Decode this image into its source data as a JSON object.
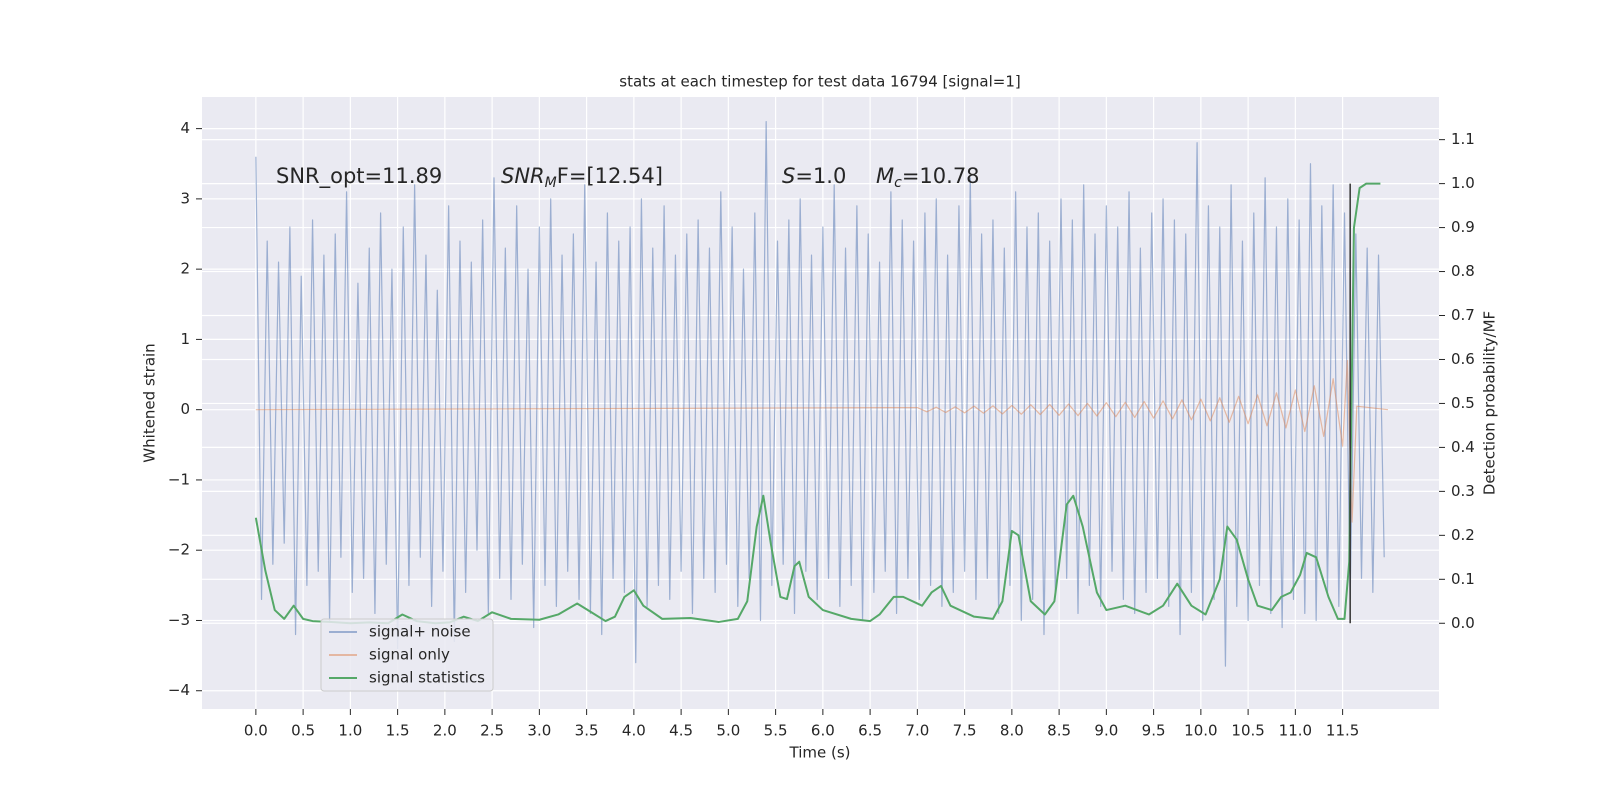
{
  "chart_data": {
    "type": "line",
    "title": "stats at each timestep for test data 16794 [signal=1]",
    "x_label": "Time (s)",
    "y_label": "Whitened strain",
    "y2_label": "Detection probability/MF",
    "xlim": [
      -0.57,
      12.52
    ],
    "ylim": [
      -4.26,
      4.45
    ],
    "y2lim": [
      -0.195,
      1.197
    ],
    "xticks": [
      {
        "value": 0,
        "label": "0.0"
      },
      0.5,
      {
        "value": 1,
        "label": "1.0"
      },
      1.5,
      {
        "value": 2,
        "label": "2.0"
      },
      2.5,
      {
        "value": 3,
        "label": "3.0"
      },
      3.5,
      {
        "value": 4,
        "label": "4.0"
      },
      4.5,
      {
        "value": 5,
        "label": "5.0"
      },
      5.5,
      {
        "value": 6,
        "label": "6.0"
      },
      6.5,
      {
        "value": 7,
        "label": "7.0"
      },
      7.5,
      {
        "value": 8,
        "label": "8.0"
      },
      8.5,
      {
        "value": 9,
        "label": "9.0"
      },
      9.5,
      {
        "value": 10,
        "label": "10.0"
      },
      10.5,
      {
        "value": 11,
        "label": "11.0"
      },
      11.5
    ],
    "yticks": [
      {
        "value": -4,
        "label": "−4"
      },
      {
        "value": -3,
        "label": "−3"
      },
      {
        "value": -2,
        "label": "−2"
      },
      {
        "value": -1,
        "label": "−1"
      },
      0,
      1,
      2,
      3,
      4
    ],
    "y2ticks": [
      {
        "value": 0,
        "label": "0.0"
      },
      0.1,
      0.2,
      0.3,
      0.4,
      0.5,
      0.6,
      0.7,
      0.8,
      0.9,
      {
        "value": 1,
        "label": "1.0"
      },
      1.1
    ],
    "grid": true,
    "legend": "lower left",
    "annotations": [
      {
        "text": "SNR_opt=11.89"
      },
      {
        "base": "SNR",
        "sub": "M",
        "tail": "F=[12.54]"
      },
      {
        "base": "S",
        "tail": "=1.0"
      },
      {
        "base": "M",
        "sub": "c",
        "tail": "=10.78"
      }
    ],
    "vline": {
      "x": 11.58,
      "y2": [
        0,
        1
      ],
      "color": "#333333"
    },
    "series": [
      {
        "name": "signal+ noise",
        "color": "#4c72b0",
        "opacity": 0.5,
        "x": [
          0,
          0.06,
          0.12,
          0.18,
          0.24,
          0.3,
          0.36,
          0.42,
          0.48,
          0.54,
          0.6,
          0.66,
          0.72,
          0.78,
          0.84,
          0.9,
          0.96,
          1.02,
          1.08,
          1.14,
          1.2,
          1.26,
          1.32,
          1.38,
          1.44,
          1.5,
          1.56,
          1.62,
          1.68,
          1.74,
          1.8,
          1.86,
          1.92,
          1.98,
          2.04,
          2.1,
          2.16,
          2.22,
          2.28,
          2.34,
          2.4,
          2.46,
          2.52,
          2.58,
          2.64,
          2.7,
          2.76,
          2.82,
          2.88,
          2.94,
          3,
          3.06,
          3.12,
          3.18,
          3.24,
          3.3,
          3.36,
          3.42,
          3.48,
          3.54,
          3.6,
          3.66,
          3.72,
          3.78,
          3.84,
          3.9,
          3.96,
          4.02,
          4.08,
          4.14,
          4.2,
          4.26,
          4.32,
          4.38,
          4.44,
          4.5,
          4.56,
          4.62,
          4.68,
          4.74,
          4.8,
          4.86,
          4.92,
          4.98,
          5.04,
          5.1,
          5.16,
          5.22,
          5.28,
          5.34,
          5.4,
          5.46,
          5.52,
          5.58,
          5.64,
          5.7,
          5.76,
          5.82,
          5.88,
          5.94,
          6,
          6.06,
          6.12,
          6.18,
          6.24,
          6.3,
          6.36,
          6.42,
          6.48,
          6.54,
          6.6,
          6.66,
          6.72,
          6.78,
          6.84,
          6.9,
          6.96,
          7.02,
          7.08,
          7.14,
          7.2,
          7.26,
          7.32,
          7.38,
          7.44,
          7.5,
          7.56,
          7.62,
          7.68,
          7.74,
          7.8,
          7.86,
          7.92,
          7.98,
          8.04,
          8.1,
          8.16,
          8.22,
          8.28,
          8.34,
          8.4,
          8.46,
          8.52,
          8.58,
          8.64,
          8.7,
          8.76,
          8.82,
          8.88,
          8.94,
          9,
          9.06,
          9.12,
          9.18,
          9.24,
          9.3,
          9.36,
          9.42,
          9.48,
          9.54,
          9.6,
          9.66,
          9.72,
          9.78,
          9.84,
          9.9,
          9.96,
          10.02,
          10.08,
          10.14,
          10.2,
          10.26,
          10.32,
          10.38,
          10.44,
          10.5,
          10.56,
          10.62,
          10.68,
          10.74,
          10.8,
          10.86,
          10.92,
          10.98,
          11.04,
          11.1,
          11.16,
          11.22,
          11.28,
          11.34,
          11.4,
          11.46,
          11.52,
          11.58,
          11.64,
          11.7,
          11.76,
          11.82,
          11.88,
          11.94
        ],
        "values": [
          3.6,
          -2.7,
          2.4,
          -2.2,
          2.1,
          -1.9,
          2.6,
          -3.2,
          1.9,
          -2.5,
          2.7,
          -2.3,
          2.2,
          -3.0,
          2.5,
          -2.1,
          3.1,
          -2.6,
          1.8,
          -2.4,
          2.3,
          -2.9,
          2.8,
          -2.2,
          2.0,
          -3.4,
          2.6,
          -2.5,
          3.2,
          -2.1,
          2.2,
          -2.8,
          1.7,
          -2.3,
          2.9,
          -3.3,
          2.4,
          -2.6,
          2.1,
          -2.0,
          2.7,
          -2.9,
          3.3,
          -2.4,
          2.3,
          -2.7,
          2.9,
          -2.2,
          2.0,
          -3.1,
          2.6,
          -2.5,
          3.0,
          -2.8,
          2.2,
          -2.3,
          2.5,
          -2.7,
          3.2,
          -2.9,
          2.1,
          -3.2,
          2.8,
          -2.4,
          2.4,
          -2.6,
          2.6,
          -3.6,
          3.0,
          -2.8,
          2.3,
          -2.5,
          2.9,
          -2.7,
          2.2,
          -2.3,
          2.5,
          -2.9,
          2.7,
          -2.4,
          2.3,
          -2.6,
          3.1,
          -2.2,
          2.6,
          -2.8,
          2.0,
          -2.4,
          2.8,
          -3.0,
          4.1,
          -2.5,
          2.4,
          -2.2,
          2.7,
          -2.9,
          3.0,
          -2.3,
          2.2,
          -2.7,
          2.6,
          -2.4,
          3.2,
          -2.8,
          2.3,
          -2.5,
          2.9,
          -3.0,
          2.5,
          -2.6,
          2.1,
          -2.3,
          3.1,
          -2.9,
          2.7,
          -2.4,
          2.4,
          -2.7,
          2.8,
          -2.5,
          3.0,
          -2.8,
          2.2,
          -2.6,
          2.9,
          -2.3,
          3.3,
          -2.7,
          2.5,
          -2.4,
          2.7,
          -2.9,
          2.3,
          -2.5,
          3.1,
          -3.0,
          2.6,
          -2.7,
          2.8,
          -3.2,
          2.4,
          -2.6,
          3.0,
          -2.4,
          2.7,
          -2.9,
          3.2,
          -2.5,
          2.5,
          -2.8,
          2.9,
          -2.3,
          2.6,
          -2.7,
          3.1,
          -2.9,
          2.3,
          -2.6,
          2.8,
          -2.4,
          3.0,
          -2.8,
          2.7,
          -3.2,
          2.5,
          -2.6,
          3.8,
          -3.0,
          2.9,
          -2.7,
          2.6,
          -3.65,
          3.2,
          -2.8,
          2.4,
          -3.0,
          2.8,
          -2.5,
          3.3,
          -2.9,
          2.6,
          -3.1,
          3.0,
          -2.7,
          2.7,
          -2.9,
          3.5,
          -3.0,
          2.9,
          -2.6,
          3.2,
          -2.8,
          2.8,
          -2.7,
          2.5,
          -2.4,
          2.3,
          -2.6,
          2.2,
          -2.1
        ]
      },
      {
        "name": "signal only",
        "color": "#dd8452",
        "opacity": 0.5,
        "x": [
          0,
          7.0,
          7.1,
          7.2,
          7.3,
          7.4,
          7.5,
          7.6,
          7.7,
          7.8,
          7.9,
          8.0,
          8.1,
          8.2,
          8.3,
          8.4,
          8.5,
          8.6,
          8.7,
          8.8,
          8.9,
          9.0,
          9.1,
          9.2,
          9.3,
          9.4,
          9.5,
          9.6,
          9.7,
          9.8,
          9.9,
          10.0,
          10.1,
          10.2,
          10.3,
          10.4,
          10.5,
          10.6,
          10.7,
          10.8,
          10.9,
          11.0,
          11.1,
          11.2,
          11.3,
          11.4,
          11.5,
          11.55,
          11.6,
          11.65,
          11.98
        ],
        "values": [
          0,
          0.03,
          -0.03,
          0.035,
          -0.04,
          0.04,
          -0.045,
          0.05,
          -0.05,
          0.055,
          -0.06,
          0.06,
          -0.065,
          0.07,
          -0.07,
          0.075,
          -0.08,
          0.08,
          -0.085,
          0.09,
          -0.09,
          0.1,
          -0.1,
          0.105,
          -0.11,
          0.115,
          -0.12,
          0.125,
          -0.13,
          0.14,
          -0.145,
          0.15,
          -0.16,
          0.17,
          -0.18,
          0.19,
          -0.2,
          0.21,
          -0.23,
          0.24,
          -0.26,
          0.28,
          -0.31,
          0.34,
          -0.38,
          0.44,
          -0.52,
          0.7,
          -1.6,
          0.05,
          0
        ]
      },
      {
        "name": "signal statistics",
        "color": "#55a868",
        "opacity": 1,
        "axis": "y2",
        "x": [
          0.0,
          0.1,
          0.2,
          0.3,
          0.4,
          0.5,
          0.6,
          0.8,
          1.0,
          1.2,
          1.4,
          1.55,
          1.7,
          1.9,
          2.05,
          2.2,
          2.35,
          2.5,
          2.7,
          3.0,
          3.2,
          3.4,
          3.55,
          3.7,
          3.8,
          3.9,
          4.0,
          4.1,
          4.3,
          4.6,
          4.9,
          5.1,
          5.2,
          5.3,
          5.37,
          5.45,
          5.55,
          5.62,
          5.7,
          5.75,
          5.85,
          6.0,
          6.3,
          6.5,
          6.6,
          6.75,
          6.85,
          7.05,
          7.15,
          7.25,
          7.35,
          7.6,
          7.8,
          7.9,
          8.0,
          8.07,
          8.2,
          8.35,
          8.45,
          8.58,
          8.65,
          8.75,
          8.9,
          9.0,
          9.2,
          9.45,
          9.6,
          9.75,
          9.9,
          10.05,
          10.2,
          10.28,
          10.38,
          10.5,
          10.6,
          10.75,
          10.85,
          10.95,
          11.05,
          11.12,
          11.22,
          11.35,
          11.45,
          11.52,
          11.57,
          11.62,
          11.68,
          11.75,
          11.9
        ],
        "values": [
          0.24,
          0.12,
          0.03,
          0.01,
          0.04,
          0.01,
          0.005,
          0.003,
          0.0,
          0.002,
          0.0,
          0.02,
          0.005,
          0.0,
          0.002,
          0.015,
          0.005,
          0.025,
          0.01,
          0.008,
          0.02,
          0.045,
          0.025,
          0.005,
          0.015,
          0.06,
          0.075,
          0.04,
          0.01,
          0.012,
          0.003,
          0.01,
          0.05,
          0.22,
          0.29,
          0.18,
          0.06,
          0.055,
          0.13,
          0.14,
          0.06,
          0.03,
          0.01,
          0.005,
          0.02,
          0.06,
          0.06,
          0.04,
          0.07,
          0.085,
          0.04,
          0.015,
          0.01,
          0.05,
          0.21,
          0.2,
          0.05,
          0.02,
          0.05,
          0.27,
          0.29,
          0.22,
          0.07,
          0.03,
          0.04,
          0.02,
          0.04,
          0.09,
          0.04,
          0.02,
          0.1,
          0.22,
          0.19,
          0.1,
          0.04,
          0.03,
          0.06,
          0.07,
          0.11,
          0.16,
          0.15,
          0.06,
          0.01,
          0.01,
          0.14,
          0.9,
          0.99,
          1.0,
          1.0
        ]
      }
    ]
  }
}
